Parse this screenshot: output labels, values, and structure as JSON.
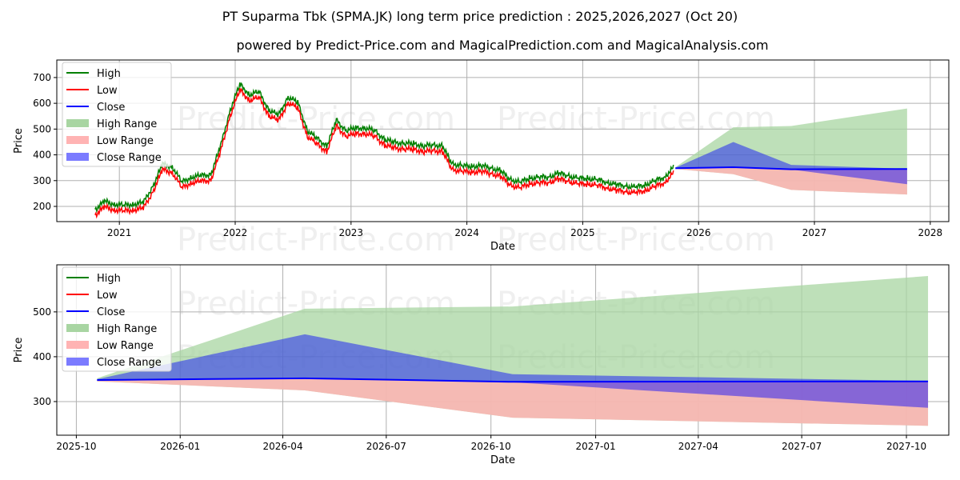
{
  "title": "PT Suparma Tbk (SPMA.JK) long term price prediction : 2025,2026,2027 (Oct 20)",
  "subtitle": "powered by Predict-Price.com and MagicalPrediction.com and MagicalAnalysis.com",
  "watermark": "Predict-Price.com",
  "colors": {
    "high": "#008000",
    "low": "#ff0000",
    "close": "#0000ff",
    "high_range": "#a8d5a2",
    "low_range": "#ffb3b3",
    "close_range": "#7b7bff"
  },
  "chart_data": [
    {
      "type": "line",
      "name": "history-and-forecast",
      "xlabel": "Date",
      "ylabel": "Price",
      "xlim": [
        2020.46,
        2028.16
      ],
      "ylim": [
        141,
        768
      ],
      "grid": true,
      "legend_placement": "top-left",
      "legend": [
        "High",
        "Low",
        "Close",
        "High Range",
        "Low Range",
        "Close Range"
      ],
      "xticks": [
        {
          "v": 2021,
          "label": "2021"
        },
        {
          "v": 2022,
          "label": "2022"
        },
        {
          "v": 2023,
          "label": "2023"
        },
        {
          "v": 2024,
          "label": "2024"
        },
        {
          "v": 2025,
          "label": "2025"
        },
        {
          "v": 2026,
          "label": "2026"
        },
        {
          "v": 2027,
          "label": "2027"
        },
        {
          "v": 2028,
          "label": "2028"
        }
      ],
      "yticks": [
        200,
        300,
        400,
        500,
        600,
        700
      ],
      "history": {
        "start": 2020.79,
        "step_months": 1,
        "close": [
          175,
          205,
          195,
          190,
          195,
          200,
          265,
          350,
          340,
          280,
          300,
          305,
          310,
          420,
          560,
          660,
          620,
          630,
          560,
          540,
          610,
          590,
          480,
          450,
          420,
          520,
          480,
          490,
          490,
          480,
          445,
          435,
          430,
          430,
          420,
          425,
          420,
          350,
          345,
          340,
          345,
          335,
          325,
          290,
          280,
          295,
          300,
          300,
          315,
          305,
          295,
          295,
          290,
          280,
          270,
          265,
          260,
          270,
          285,
          300,
          340
        ],
        "high_offset": 14,
        "low_offset": -8
      },
      "forecast": {
        "x": [
          2025.8,
          2026.3,
          2026.8,
          2027.8
        ],
        "close": [
          348,
          352,
          344,
          345
        ],
        "high_range": {
          "upper": [
            352,
            507,
            512,
            580
          ],
          "lower": [
            345,
            325,
            264,
            246
          ]
        },
        "close_range": {
          "upper": [
            350,
            450,
            361,
            346
          ],
          "lower": [
            346,
            352,
            343,
            286
          ]
        },
        "low_range": {
          "upper": [
            348,
            352,
            344,
            345
          ],
          "lower": [
            345,
            325,
            264,
            246
          ]
        }
      }
    },
    {
      "type": "line",
      "name": "forecast-zoom",
      "xlabel": "Date",
      "ylabel": "Price",
      "xlim": [
        2025.703,
        2027.85
      ],
      "ylim": [
        225,
        605
      ],
      "grid": true,
      "legend_placement": "top-left",
      "legend": [
        "High",
        "Low",
        "Close",
        "High Range",
        "Low Range",
        "Close Range"
      ],
      "xticks": [
        {
          "v": 2025.75,
          "label": "2025-10"
        },
        {
          "v": 2026.0,
          "label": "2026-01"
        },
        {
          "v": 2026.247,
          "label": "2026-04"
        },
        {
          "v": 2026.496,
          "label": "2026-07"
        },
        {
          "v": 2026.748,
          "label": "2026-10"
        },
        {
          "v": 2027.0,
          "label": "2027-01"
        },
        {
          "v": 2027.247,
          "label": "2027-04"
        },
        {
          "v": 2027.496,
          "label": "2027-07"
        },
        {
          "v": 2027.748,
          "label": "2027-10"
        }
      ],
      "yticks": [
        300,
        400,
        500
      ]
    }
  ]
}
